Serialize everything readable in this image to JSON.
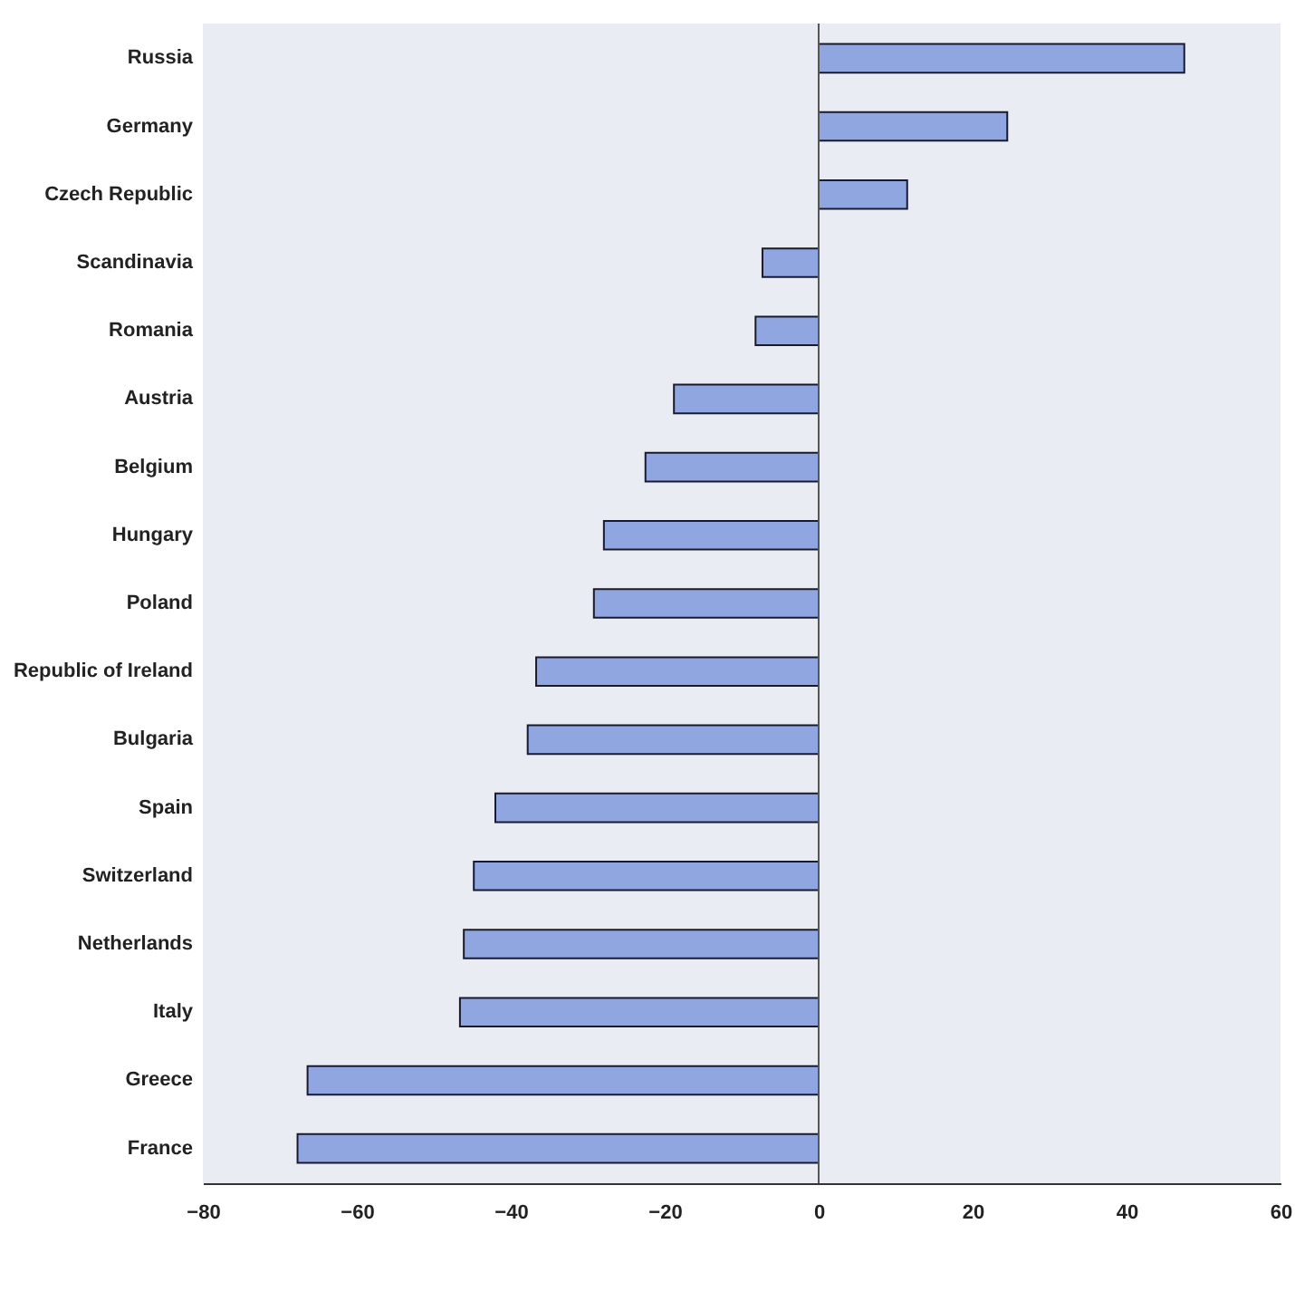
{
  "chart_data": {
    "type": "bar",
    "orientation": "horizontal",
    "categories": [
      "Russia",
      "Germany",
      "Czech Republic",
      "Scandinavia",
      "Romania",
      "Austria",
      "Belgium",
      "Hungary",
      "Poland",
      "Republic of Ireland",
      "Bulgaria",
      "Spain",
      "Switzerland",
      "Netherlands",
      "Italy",
      "Greece",
      "France"
    ],
    "values": [
      47.5,
      24.5,
      11.5,
      -7.3,
      -8.2,
      -18.8,
      -22.5,
      -27.9,
      -29.2,
      -36.7,
      -37.8,
      -42,
      -44.8,
      -46.1,
      -46.6,
      -66.4,
      -67.7
    ],
    "color": "#8fa6e0",
    "xlim": [
      -80,
      60
    ],
    "xticks": [
      -80,
      -60,
      -40,
      -20,
      0,
      20,
      40,
      60
    ],
    "ref_lines": [
      {
        "axis": "x",
        "value": 0,
        "color": "#555555"
      }
    ],
    "grid": false
  }
}
